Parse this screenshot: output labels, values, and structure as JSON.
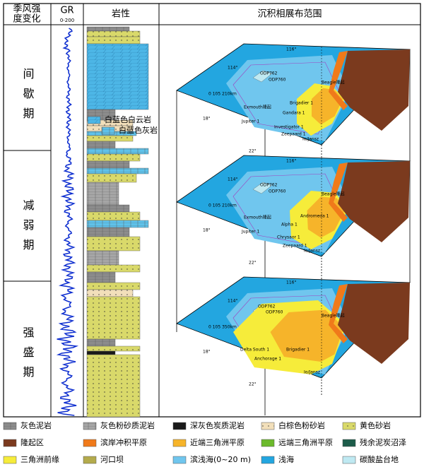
{
  "header": {
    "monsoon": [
      "季风强",
      "度变化"
    ],
    "gr": "GR",
    "gr_range": "0-200",
    "lithology": "岩性",
    "facies": "沉积相展布范围"
  },
  "periods": [
    "间歇期",
    "减弱期",
    "强盛期"
  ],
  "maps": [
    {
      "labels": [
        "ODP762",
        "ODP760",
        "Beagle隆起",
        "Exmouth隆起",
        "Jupiter 1",
        "Gandara 1",
        "Brigadier 1",
        "Investigator 1",
        "Zeepaard 1",
        "Io/Jansz",
        "114°",
        "116°",
        "18°",
        "22°",
        "0  105  210km"
      ]
    },
    {
      "labels": [
        "ODP762",
        "ODP760",
        "Beagle隆起",
        "Exmouth隆起",
        "Jupiter 1",
        "Alpha 1",
        "Andromeda 1",
        "Chrysaor 1",
        "Zeepaard 1",
        "Io/Jansz",
        "114°",
        "116°",
        "18°",
        "22°",
        "0  105  210km"
      ]
    },
    {
      "labels": [
        "ODP762",
        "ODP760",
        "Beagle隆起",
        "Delta South 1",
        "Anchorage 1",
        "Brigadier 1",
        "Io/Jansz",
        "114°",
        "116°",
        "18°",
        "22°",
        "0  105  350km"
      ]
    }
  ],
  "legend": [
    {
      "label": "灰色泥岩",
      "color": "#8c8c8c"
    },
    {
      "label": "灰色粉砂质泥岩",
      "color": "#a6a6a6"
    },
    {
      "label": "深灰色炭质泥岩",
      "color": "#1a1a1a"
    },
    {
      "label": "白棕色粉砂岩",
      "color": "#f2dfba"
    },
    {
      "label": "黄色砂岩",
      "color": "#d9d96a"
    },
    {
      "label": "隆起区",
      "color": "#7b3a1e"
    },
    {
      "label": "滨岸冲积平原",
      "color": "#f07a1a"
    },
    {
      "label": "近端三角洲平原",
      "color": "#f6b42a"
    },
    {
      "label": "远端三角洲平原",
      "color": "#6cba2c"
    },
    {
      "label": "残余泥炭沼泽",
      "color": "#1d5c4a"
    },
    {
      "label": "三角洲前缘",
      "color": "#f6ec3a"
    },
    {
      "label": "河口坝",
      "color": "#b4ab4c"
    },
    {
      "label": "滨浅海(0~20 m)",
      "color": "#70c6ee"
    },
    {
      "label": "浅海",
      "color": "#23a6e0"
    },
    {
      "label": "碳酸盐台地",
      "color": "#bfe9f2"
    },
    {
      "label": "白蓝色白云岩",
      "color": "#4db6e6"
    },
    {
      "label": "白蓝色灰岩",
      "color": "#5fc2ea"
    }
  ]
}
